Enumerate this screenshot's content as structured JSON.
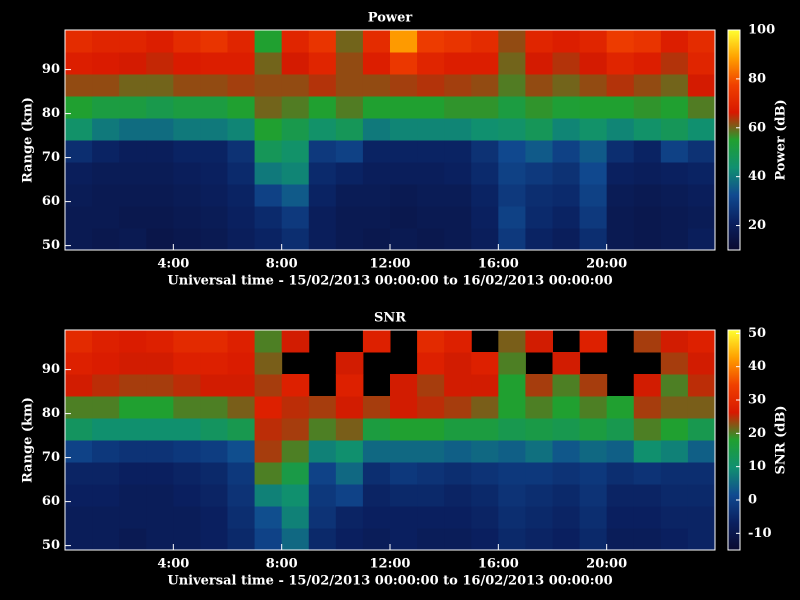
{
  "chart_data": [
    {
      "type": "heatmap",
      "title": "Power",
      "xlabel": "Universal time - 15/02/2013 00:00:00 to 16/02/2013 00:00:00",
      "ylabel": "Range (km)",
      "colorbar_label": "Power (dB)",
      "xlim": [
        0,
        24
      ],
      "ylim": [
        49,
        99
      ],
      "zlim": [
        10,
        100
      ],
      "xticks": [
        {
          "value": 4,
          "label": "4:00"
        },
        {
          "value": 8,
          "label": "8:00"
        },
        {
          "value": 12,
          "label": "12:00"
        },
        {
          "value": 16,
          "label": "16:00"
        },
        {
          "value": 20,
          "label": "20:00"
        }
      ],
      "yticks": [
        50,
        60,
        70,
        80,
        90
      ],
      "zticks": [
        20,
        40,
        60,
        80,
        100
      ],
      "colormap": [
        "#0a0a30",
        "#0a2060",
        "#104a90",
        "#109070",
        "#20a030",
        "#d81800",
        "#f04000",
        "#ffa000",
        "#ffff30"
      ],
      "x_edges": [
        0,
        1,
        2,
        3,
        4,
        5,
        6,
        7,
        8,
        9,
        10,
        11,
        12,
        13,
        14,
        15,
        16,
        17,
        18,
        19,
        20,
        21,
        22,
        23,
        24
      ],
      "y_edges": [
        49,
        54,
        59,
        64,
        69,
        74,
        79,
        84,
        89,
        94,
        99
      ],
      "z": [
        [
          18,
          17,
          18,
          16,
          17,
          18,
          20,
          22,
          25,
          20,
          18,
          17,
          18,
          17,
          18,
          20,
          28,
          22,
          20,
          25,
          18,
          17,
          18,
          20
        ],
        [
          18,
          18,
          17,
          17,
          18,
          19,
          21,
          24,
          28,
          20,
          18,
          18,
          17,
          18,
          18,
          21,
          30,
          24,
          22,
          28,
          18,
          17,
          18,
          19
        ],
        [
          19,
          18,
          18,
          18,
          19,
          20,
          22,
          30,
          35,
          22,
          19,
          19,
          18,
          19,
          19,
          22,
          28,
          25,
          24,
          30,
          19,
          18,
          19,
          20
        ],
        [
          20,
          19,
          19,
          19,
          20,
          21,
          24,
          40,
          42,
          24,
          22,
          20,
          20,
          20,
          21,
          24,
          30,
          28,
          26,
          32,
          21,
          20,
          21,
          22
        ],
        [
          25,
          22,
          20,
          20,
          22,
          22,
          26,
          48,
          45,
          28,
          30,
          22,
          22,
          22,
          22,
          26,
          32,
          35,
          30,
          35,
          25,
          22,
          30,
          26
        ],
        [
          45,
          40,
          38,
          38,
          40,
          40,
          42,
          55,
          50,
          45,
          48,
          40,
          42,
          42,
          42,
          44,
          45,
          48,
          42,
          45,
          42,
          45,
          48,
          44
        ],
        [
          55,
          52,
          52,
          50,
          52,
          52,
          55,
          60,
          58,
          55,
          58,
          55,
          55,
          55,
          56,
          56,
          52,
          56,
          54,
          55,
          55,
          56,
          55,
          58
        ],
        [
          62,
          62,
          60,
          60,
          62,
          62,
          63,
          62,
          62,
          64,
          62,
          62,
          63,
          64,
          63,
          62,
          58,
          62,
          60,
          62,
          64,
          62,
          60,
          66
        ],
        [
          68,
          67,
          66,
          65,
          67,
          68,
          68,
          60,
          66,
          70,
          62,
          68,
          75,
          70,
          68,
          68,
          60,
          66,
          64,
          66,
          70,
          68,
          64,
          70
        ],
        [
          72,
          70,
          70,
          68,
          72,
          74,
          70,
          55,
          70,
          74,
          60,
          72,
          88,
          76,
          74,
          72,
          62,
          70,
          68,
          70,
          76,
          74,
          68,
          72
        ]
      ]
    },
    {
      "type": "heatmap",
      "title": "SNR",
      "xlabel": "Universal time - 15/02/2013 00:00:00 to 16/02/2013 00:00:00",
      "ylabel": "Range (km)",
      "colorbar_label": "SNR (dB)",
      "xlim": [
        0,
        24
      ],
      "ylim": [
        49,
        99
      ],
      "zlim": [
        -15,
        51
      ],
      "xticks": [
        {
          "value": 4,
          "label": "4:00"
        },
        {
          "value": 8,
          "label": "8:00"
        },
        {
          "value": 12,
          "label": "12:00"
        },
        {
          "value": 16,
          "label": "16:00"
        },
        {
          "value": 20,
          "label": "20:00"
        }
      ],
      "yticks": [
        50,
        60,
        70,
        80,
        90
      ],
      "zticks": [
        -10,
        0,
        10,
        20,
        30,
        40,
        50
      ],
      "colormap": [
        "#0a0a30",
        "#0a2060",
        "#104a90",
        "#109070",
        "#20a030",
        "#d81800",
        "#f04000",
        "#ffa000",
        "#ffff30"
      ],
      "x_edges": [
        0,
        1,
        2,
        3,
        4,
        5,
        6,
        7,
        8,
        9,
        10,
        11,
        12,
        13,
        14,
        15,
        16,
        17,
        18,
        19,
        20,
        21,
        22,
        23,
        24
      ],
      "y_edges": [
        49,
        54,
        59,
        64,
        69,
        74,
        79,
        84,
        89,
        94,
        99
      ],
      "z": [
        [
          -8,
          -8,
          -9,
          -8,
          -8,
          -7,
          -5,
          0,
          5,
          -5,
          -7,
          -8,
          -7,
          -8,
          -8,
          -7,
          -5,
          -6,
          -7,
          -5,
          -8,
          -8,
          -7,
          -6
        ],
        [
          -8,
          -8,
          -8,
          -8,
          -8,
          -7,
          -4,
          2,
          8,
          -3,
          -6,
          -7,
          -7,
          -7,
          -7,
          -6,
          -4,
          -5,
          -6,
          -4,
          -7,
          -7,
          -6,
          -6
        ],
        [
          -7,
          -7,
          -8,
          -8,
          -7,
          -6,
          -3,
          8,
          10,
          -2,
          0,
          -6,
          -5,
          -5,
          -6,
          -5,
          -3,
          -4,
          -5,
          -3,
          -6,
          -6,
          -5,
          -5
        ],
        [
          -6,
          -6,
          -7,
          -7,
          -6,
          -5,
          -2,
          20,
          15,
          0,
          5,
          -4,
          -2,
          -3,
          -4,
          -3,
          -2,
          -2,
          -3,
          -2,
          -4,
          -3,
          -4,
          -4
        ],
        [
          0,
          -2,
          -3,
          -3,
          -2,
          -1,
          2,
          24,
          20,
          8,
          10,
          5,
          5,
          5,
          4,
          5,
          4,
          6,
          3,
          5,
          4,
          10,
          8,
          4
        ],
        [
          12,
          10,
          10,
          10,
          10,
          12,
          14,
          25,
          24,
          20,
          22,
          16,
          18,
          18,
          16,
          16,
          14,
          15,
          14,
          16,
          14,
          20,
          18,
          14
        ],
        [
          20,
          20,
          18,
          18,
          20,
          20,
          22,
          28,
          25,
          24,
          26,
          24,
          26,
          25,
          24,
          22,
          18,
          20,
          18,
          20,
          18,
          24,
          22,
          22
        ],
        [
          26,
          25,
          24,
          24,
          25,
          26,
          26,
          24,
          28,
          null,
          28,
          null,
          26,
          24,
          26,
          26,
          18,
          24,
          20,
          24,
          null,
          26,
          20,
          25
        ],
        [
          28,
          27,
          26,
          26,
          28,
          28,
          27,
          22,
          null,
          null,
          26,
          null,
          null,
          28,
          26,
          28,
          20,
          null,
          26,
          null,
          null,
          null,
          24,
          26
        ],
        [
          30,
          28,
          27,
          28,
          30,
          30,
          28,
          20,
          26,
          null,
          null,
          28,
          null,
          30,
          28,
          null,
          22,
          26,
          null,
          28,
          null,
          24,
          26,
          28
        ]
      ]
    }
  ]
}
